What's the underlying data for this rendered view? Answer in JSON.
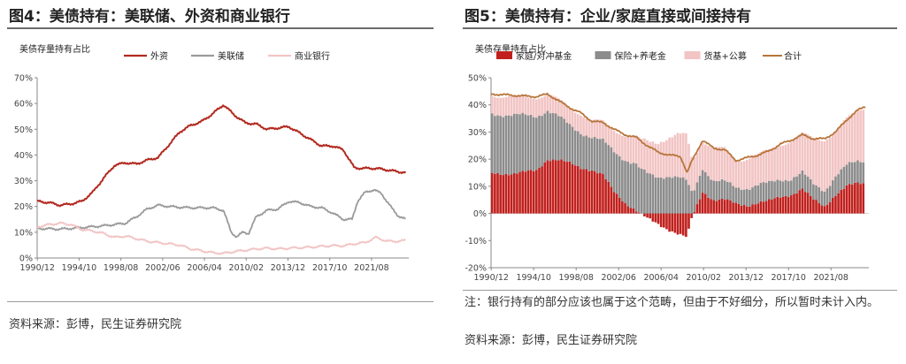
{
  "left": {
    "title": "图4：美债持有：美联储、外资和商业银行",
    "source": "资料来源：彭博，民生证券研究院",
    "chart_data": {
      "type": "line",
      "subtitle": "美债存量持有占比",
      "x_ticks": [
        "1990/12",
        "1994/10",
        "1998/08",
        "2002/06",
        "2006/04",
        "2010/02",
        "2013/12",
        "2017/10",
        "2021/08"
      ],
      "x_range": [
        1990.9,
        2025.0
      ],
      "y_ticks": [
        "0%",
        "10%",
        "20%",
        "30%",
        "40%",
        "50%",
        "60%",
        "70%"
      ],
      "ylim": [
        0,
        70
      ],
      "grid": false,
      "legend_position": "top",
      "colors": {
        "外资": "#b22a20",
        "美联储": "#9a9a9a",
        "商业银行": "#f2c4c4"
      },
      "series": [
        {
          "name": "外资",
          "values": [
            [
              1990.9,
              22
            ],
            [
              1992,
              21.5
            ],
            [
              1993,
              20.5
            ],
            [
              1994,
              21
            ],
            [
              1995,
              22
            ],
            [
              1996,
              25.5
            ],
            [
              1997,
              31
            ],
            [
              1998,
              36
            ],
            [
              1999,
              37
            ],
            [
              2000,
              36.5
            ],
            [
              2001,
              38
            ],
            [
              2002,
              39
            ],
            [
              2003,
              44
            ],
            [
              2004,
              49
            ],
            [
              2005,
              51.5
            ],
            [
              2006,
              53
            ],
            [
              2007,
              56
            ],
            [
              2008,
              59.5
            ],
            [
              2009,
              55.5
            ],
            [
              2010,
              52.5
            ],
            [
              2011,
              52
            ],
            [
              2012,
              50
            ],
            [
              2013,
              50.5
            ],
            [
              2014,
              51
            ],
            [
              2015,
              48.5
            ],
            [
              2016,
              46
            ],
            [
              2017,
              43.5
            ],
            [
              2018,
              43.5
            ],
            [
              2019,
              42
            ],
            [
              2020,
              35
            ],
            [
              2021,
              34.8
            ],
            [
              2022,
              34.8
            ],
            [
              2023,
              34.2
            ],
            [
              2024,
              33.5
            ],
            [
              2024.7,
              33.2
            ]
          ]
        },
        {
          "name": "美联储",
          "values": [
            [
              1990.9,
              11.5
            ],
            [
              1993,
              11.2
            ],
            [
              1995,
              11.8
            ],
            [
              1997,
              12.5
            ],
            [
              1999,
              13.5
            ],
            [
              2000,
              16
            ],
            [
              2001,
              19
            ],
            [
              2002,
              20.5
            ],
            [
              2003,
              20
            ],
            [
              2004,
              19.7
            ],
            [
              2005,
              19.5
            ],
            [
              2006,
              19.5
            ],
            [
              2007,
              19.5
            ],
            [
              2008,
              18.5
            ],
            [
              2008.7,
              10
            ],
            [
              2009.2,
              8.2
            ],
            [
              2009.8,
              10
            ],
            [
              2010.3,
              9.5
            ],
            [
              2011,
              16
            ],
            [
              2012,
              18.5
            ],
            [
              2013,
              19
            ],
            [
              2014,
              22
            ],
            [
              2015,
              21.5
            ],
            [
              2016,
              20
            ],
            [
              2017,
              19.5
            ],
            [
              2018,
              17.5
            ],
            [
              2019,
              15
            ],
            [
              2019.8,
              15
            ],
            [
              2020.3,
              22
            ],
            [
              2021,
              25.5
            ],
            [
              2021.8,
              26.5
            ],
            [
              2022.5,
              25
            ],
            [
              2023.5,
              19
            ],
            [
              2024,
              16.5
            ],
            [
              2024.7,
              15
            ]
          ]
        },
        {
          "name": "商业银行",
          "values": [
            [
              1990.9,
              12
            ],
            [
              1992,
              13
            ],
            [
              1993,
              13.5
            ],
            [
              1994,
              13
            ],
            [
              1995,
              11
            ],
            [
              1996,
              10.5
            ],
            [
              1997,
              9.5
            ],
            [
              1998,
              8
            ],
            [
              1999,
              8.5
            ],
            [
              2000,
              7.5
            ],
            [
              2001,
              6.5
            ],
            [
              2002,
              6
            ],
            [
              2003,
              5.5
            ],
            [
              2004,
              5
            ],
            [
              2005,
              3.5
            ],
            [
              2006,
              2.8
            ],
            [
              2007,
              2
            ],
            [
              2008,
              1.8
            ],
            [
              2009,
              2.5
            ],
            [
              2010,
              3
            ],
            [
              2011,
              3.5
            ],
            [
              2012,
              3.8
            ],
            [
              2013,
              3.5
            ],
            [
              2014,
              3.8
            ],
            [
              2015,
              4
            ],
            [
              2016,
              4.2
            ],
            [
              2017,
              4.5
            ],
            [
              2018,
              4.8
            ],
            [
              2019,
              4.7
            ],
            [
              2020,
              5.5
            ],
            [
              2021,
              6
            ],
            [
              2022,
              8
            ],
            [
              2023,
              6.5
            ],
            [
              2024,
              6.5
            ],
            [
              2024.7,
              6.8
            ]
          ]
        }
      ]
    }
  },
  "right": {
    "title": "图5：美债持有：企业/家庭直接或间接持有",
    "note": "注：银行持有的部分应该也属于这个范畴，但由于不好细分，所以暂时未计入内。",
    "source": "资料来源：彭博，民生证券研究院",
    "chart_data": {
      "type": "bar",
      "subtitle": "美债存量持有占比",
      "x_ticks": [
        "1990/12",
        "1994/10",
        "1998/08",
        "2002/06",
        "2006/04",
        "2010/02",
        "2013/12",
        "2017/10",
        "2021/08"
      ],
      "x_range": [
        1990.9,
        2025.0
      ],
      "y_ticks": [
        "-20%",
        "-10%",
        "0%",
        "10%",
        "20%",
        "30%",
        "40%",
        "50%"
      ],
      "ylim": [
        -20,
        50
      ],
      "stacked": true,
      "grid": false,
      "legend_position": "top",
      "colors": {
        "家庭/对冲基金": "#c0201d",
        "保险+养老金": "#8c8c8c",
        "货基+公募": "#f2c4c4",
        "合计": "#b8753a"
      },
      "series": [
        {
          "name": "家庭/对冲基金",
          "kind": "bar",
          "values": [
            [
              1990.9,
              15
            ],
            [
              1993,
              14.5
            ],
            [
              1995,
              16
            ],
            [
              1996,
              20
            ],
            [
              1997,
              19.5
            ],
            [
              1998,
              18.5
            ],
            [
              1999,
              17
            ],
            [
              2000,
              16
            ],
            [
              2001,
              14
            ],
            [
              2002,
              8
            ],
            [
              2003,
              4
            ],
            [
              2004,
              1
            ],
            [
              2005,
              -2
            ],
            [
              2006,
              -4
            ],
            [
              2007,
              -6
            ],
            [
              2008,
              -8
            ],
            [
              2008.6,
              -9
            ],
            [
              2009,
              -2
            ],
            [
              2010,
              8
            ],
            [
              2011,
              5
            ],
            [
              2012,
              5
            ],
            [
              2013,
              3.5
            ],
            [
              2014,
              3
            ],
            [
              2015,
              4
            ],
            [
              2016,
              4.5
            ],
            [
              2017,
              6
            ],
            [
              2018,
              7
            ],
            [
              2019,
              9
            ],
            [
              2020,
              5
            ],
            [
              2021,
              2.5
            ],
            [
              2022,
              7
            ],
            [
              2023,
              10
            ],
            [
              2024,
              11
            ],
            [
              2024.7,
              11
            ]
          ]
        },
        {
          "name": "保险+养老金",
          "kind": "bar",
          "values": [
            [
              1990.9,
              22
            ],
            [
              1993,
              21.5
            ],
            [
              1995,
              20
            ],
            [
              1996,
              18
            ],
            [
              1997,
              16
            ],
            [
              1998,
              14
            ],
            [
              1999,
              13
            ],
            [
              2000,
              12
            ],
            [
              2001,
              12.5
            ],
            [
              2002,
              15
            ],
            [
              2003,
              16
            ],
            [
              2004,
              17
            ],
            [
              2005,
              15
            ],
            [
              2006,
              13.5
            ],
            [
              2007,
              13.5
            ],
            [
              2008,
              13
            ],
            [
              2008.6,
              12
            ],
            [
              2009,
              8
            ],
            [
              2010,
              9
            ],
            [
              2011,
              7
            ],
            [
              2012,
              6.5
            ],
            [
              2013,
              6
            ],
            [
              2014,
              6.5
            ],
            [
              2015,
              6.5
            ],
            [
              2016,
              6.5
            ],
            [
              2017,
              6.5
            ],
            [
              2018,
              6
            ],
            [
              2019,
              6
            ],
            [
              2020,
              5.5
            ],
            [
              2021,
              6
            ],
            [
              2022,
              7
            ],
            [
              2023,
              7.5
            ],
            [
              2024,
              8
            ],
            [
              2024.7,
              8.5
            ]
          ]
        },
        {
          "name": "货基+公募",
          "kind": "bar",
          "values": [
            [
              1990.9,
              7
            ],
            [
              1993,
              6.5
            ],
            [
              1995,
              7
            ],
            [
              1996,
              6
            ],
            [
              1997,
              6
            ],
            [
              1998,
              6.5
            ],
            [
              1999,
              7
            ],
            [
              2000,
              6
            ],
            [
              2001,
              7
            ],
            [
              2002,
              8
            ],
            [
              2003,
              9
            ],
            [
              2004,
              10
            ],
            [
              2005,
              12
            ],
            [
              2006,
              13
            ],
            [
              2007,
              14
            ],
            [
              2008,
              16
            ],
            [
              2008.6,
              17
            ],
            [
              2009,
              13
            ],
            [
              2010,
              10
            ],
            [
              2011,
              12
            ],
            [
              2012,
              12
            ],
            [
              2013,
              10
            ],
            [
              2014,
              11
            ],
            [
              2015,
              11
            ],
            [
              2016,
              12
            ],
            [
              2017,
              13
            ],
            [
              2018,
              14
            ],
            [
              2019,
              14
            ],
            [
              2020,
              17
            ],
            [
              2021,
              19
            ],
            [
              2022,
              16
            ],
            [
              2023,
              17
            ],
            [
              2024,
              19
            ],
            [
              2024.7,
              20
            ]
          ]
        },
        {
          "name": "合计",
          "kind": "line",
          "values": [
            [
              1990.9,
              44
            ],
            [
              1993,
              43.5
            ],
            [
              1995,
              43
            ],
            [
              1996,
              44
            ],
            [
              1997,
              41.5
            ],
            [
              1998,
              39
            ],
            [
              1999,
              37
            ],
            [
              2000,
              34
            ],
            [
              2001,
              33.5
            ],
            [
              2002,
              31
            ],
            [
              2003,
              29
            ],
            [
              2004,
              28
            ],
            [
              2005,
              25
            ],
            [
              2006,
              22.5
            ],
            [
              2007,
              21.5
            ],
            [
              2008,
              21
            ],
            [
              2008.6,
              15
            ],
            [
              2009,
              19
            ],
            [
              2010,
              27
            ],
            [
              2011,
              24
            ],
            [
              2012,
              23.5
            ],
            [
              2013,
              19.5
            ],
            [
              2014,
              20.5
            ],
            [
              2015,
              21.5
            ],
            [
              2016,
              23
            ],
            [
              2017,
              25.5
            ],
            [
              2018,
              27
            ],
            [
              2019,
              29
            ],
            [
              2020,
              27.5
            ],
            [
              2021,
              27.5
            ],
            [
              2022,
              30
            ],
            [
              2023,
              34.5
            ],
            [
              2024,
              38
            ],
            [
              2024.7,
              39.5
            ]
          ]
        }
      ]
    }
  }
}
